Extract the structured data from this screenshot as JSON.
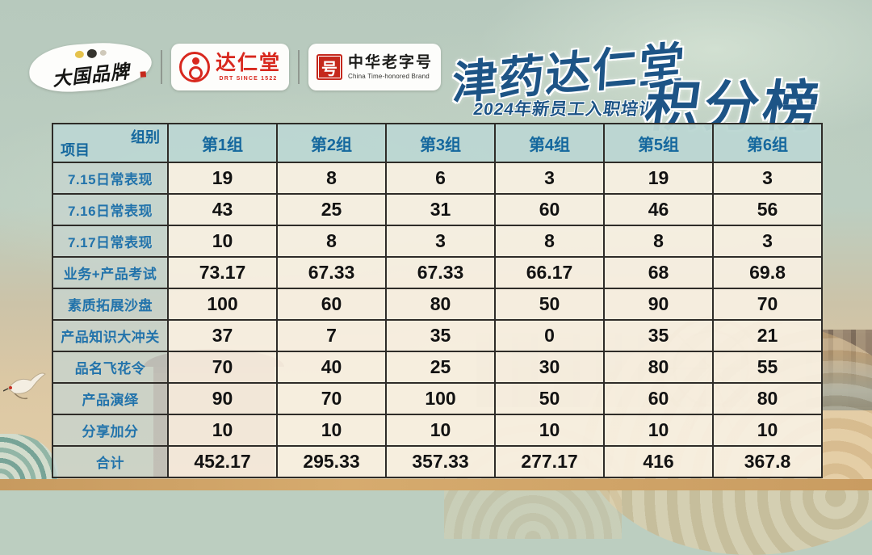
{
  "brand_bar": {
    "daguo_logo": "大国品牌",
    "drt_name": "达仁堂",
    "drt_sub": "DRT SINCE 1522",
    "tha_seal_glyph": "号",
    "tha_name": "中华老字号",
    "tha_sub": "China Time-honored Brand"
  },
  "title": {
    "brand": "津药达仁堂",
    "subtitle": "2024年新员工入职培训",
    "main": "积分榜"
  },
  "table": {
    "corner_top": "组别",
    "corner_bottom": "项目",
    "columns": [
      "第1组",
      "第2组",
      "第3组",
      "第4组",
      "第5组",
      "第6组"
    ],
    "rows": [
      {
        "label": "7.15日常表现",
        "values": [
          "19",
          "8",
          "6",
          "3",
          "19",
          "3"
        ]
      },
      {
        "label": "7.16日常表现",
        "values": [
          "43",
          "25",
          "31",
          "60",
          "46",
          "56"
        ]
      },
      {
        "label": "7.17日常表现",
        "values": [
          "10",
          "8",
          "3",
          "8",
          "8",
          "3"
        ]
      },
      {
        "label": "业务+产品考试",
        "values": [
          "73.17",
          "67.33",
          "67.33",
          "66.17",
          "68",
          "69.8"
        ]
      },
      {
        "label": "素质拓展沙盘",
        "values": [
          "100",
          "60",
          "80",
          "50",
          "90",
          "70"
        ]
      },
      {
        "label": "产品知识大冲关",
        "values": [
          "37",
          "7",
          "35",
          "0",
          "35",
          "21"
        ]
      },
      {
        "label": "品名飞花令",
        "values": [
          "70",
          "40",
          "25",
          "30",
          "80",
          "55"
        ]
      },
      {
        "label": "产品演绎",
        "values": [
          "90",
          "70",
          "100",
          "50",
          "60",
          "80"
        ]
      },
      {
        "label": "分享加分",
        "values": [
          "10",
          "10",
          "10",
          "10",
          "10",
          "10"
        ]
      },
      {
        "label": "合计",
        "values": [
          "452.17",
          "295.33",
          "357.33",
          "277.17",
          "416",
          "367.8"
        ]
      }
    ]
  },
  "colors": {
    "title_blue": "#1d5486",
    "header_text_blue": "#15689e",
    "label_text_blue": "#2273ab",
    "value_black": "#121212",
    "header_bg": "#bbd6d2",
    "cell_bg": "#f7f0e2",
    "brand_red": "#d8281e",
    "bg_sage": "#bccec1",
    "bg_sand": "#e0cba6"
  }
}
